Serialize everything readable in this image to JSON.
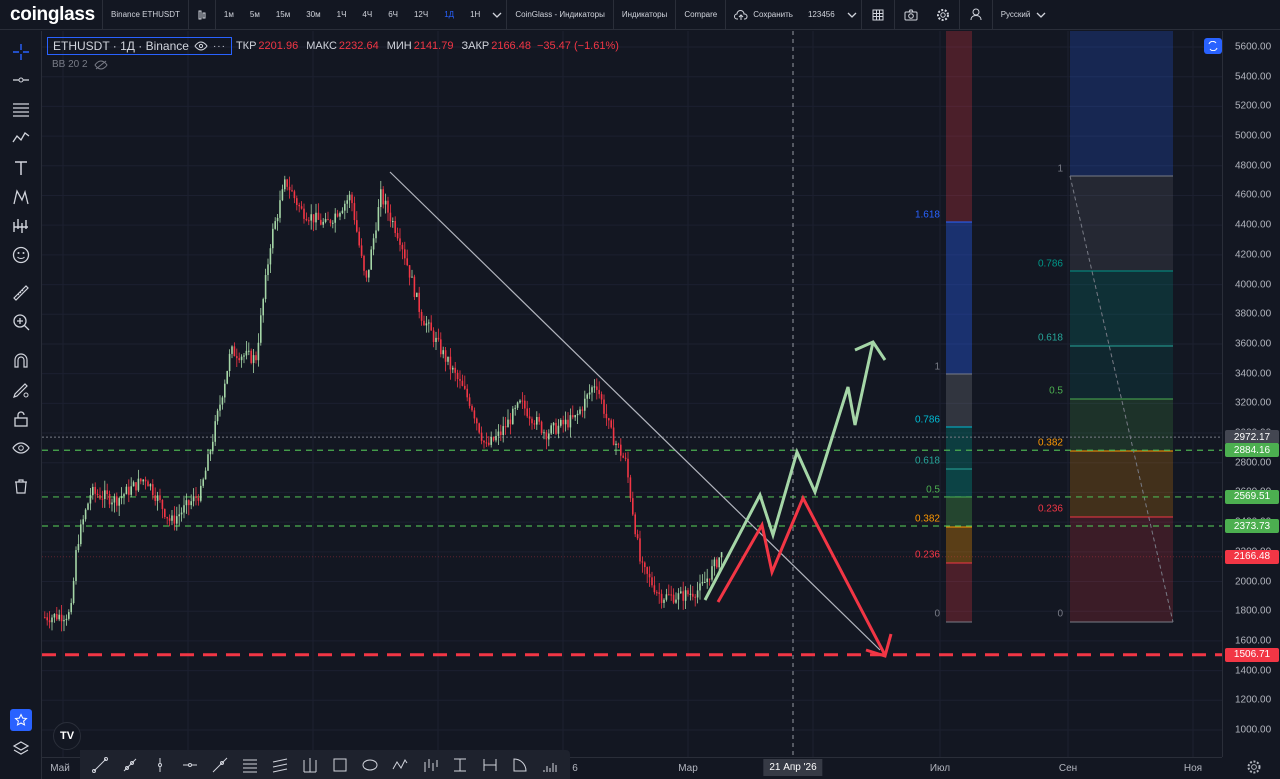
{
  "topbar": {
    "logo": "coinglass",
    "symbol": "Binance ETHUSDT",
    "intervals": [
      "1м",
      "5м",
      "15м",
      "30м",
      "1Ч",
      "4Ч",
      "6Ч",
      "12Ч",
      "1Д",
      "1Н"
    ],
    "active_interval": "1Д",
    "indicators_cg": "CoinGlass - Индикаторы",
    "indicators": "Индикаторы",
    "compare": "Compare",
    "save": "Сохранить",
    "layout_name": "123456",
    "language": "Русский"
  },
  "legend": {
    "symbol": "ETHUSDT · 1Д · Binance",
    "open_label": "ТКР",
    "open": "2201.96",
    "high_label": "МАКС",
    "high": "2232.64",
    "low_label": "МИН",
    "low": "2141.79",
    "close_label": "ЗАКР",
    "close": "2166.48",
    "change": "−35.47 (−1.61%)",
    "indicator": "BB 20 2"
  },
  "price_axis": {
    "ticks": [
      "5600.00",
      "5400.00",
      "5200.00",
      "5000.00",
      "4800.00",
      "4600.00",
      "4400.00",
      "4200.00",
      "4000.00",
      "3800.00",
      "3600.00",
      "3400.00",
      "3200.00",
      "3000.00",
      "2800.00",
      "2600.00",
      "2400.00",
      "2200.00",
      "2000.00",
      "1800.00",
      "1600.00",
      "1400.00",
      "1200.00",
      "1000.00"
    ],
    "labels": [
      {
        "value": "2972.17",
        "color": "#434651"
      },
      {
        "value": "2884.16",
        "color": "#4caf50"
      },
      {
        "value": "2569.51",
        "color": "#4caf50"
      },
      {
        "value": "2373.73",
        "color": "#4caf50"
      },
      {
        "value": "2166.48",
        "color": "#f23645"
      },
      {
        "value": "1506.71",
        "color": "#f23645"
      }
    ]
  },
  "time_axis": {
    "ticks": [
      "Май",
      "6",
      "Мар",
      "Июл",
      "Сен",
      "Ноя"
    ],
    "crosshair": "21 Апр '26"
  },
  "fib_left": [
    "1.618",
    "1",
    "0.786",
    "0.618",
    "0.5",
    "0.382",
    "0.236",
    "0"
  ],
  "fib_right": [
    "1",
    "0.786",
    "0.618",
    "0.5",
    "0.382",
    "0.236",
    "0"
  ],
  "colors": {
    "bg": "#131722",
    "up": "#a5d6a7",
    "down": "#f23645",
    "accent": "#2962ff"
  }
}
